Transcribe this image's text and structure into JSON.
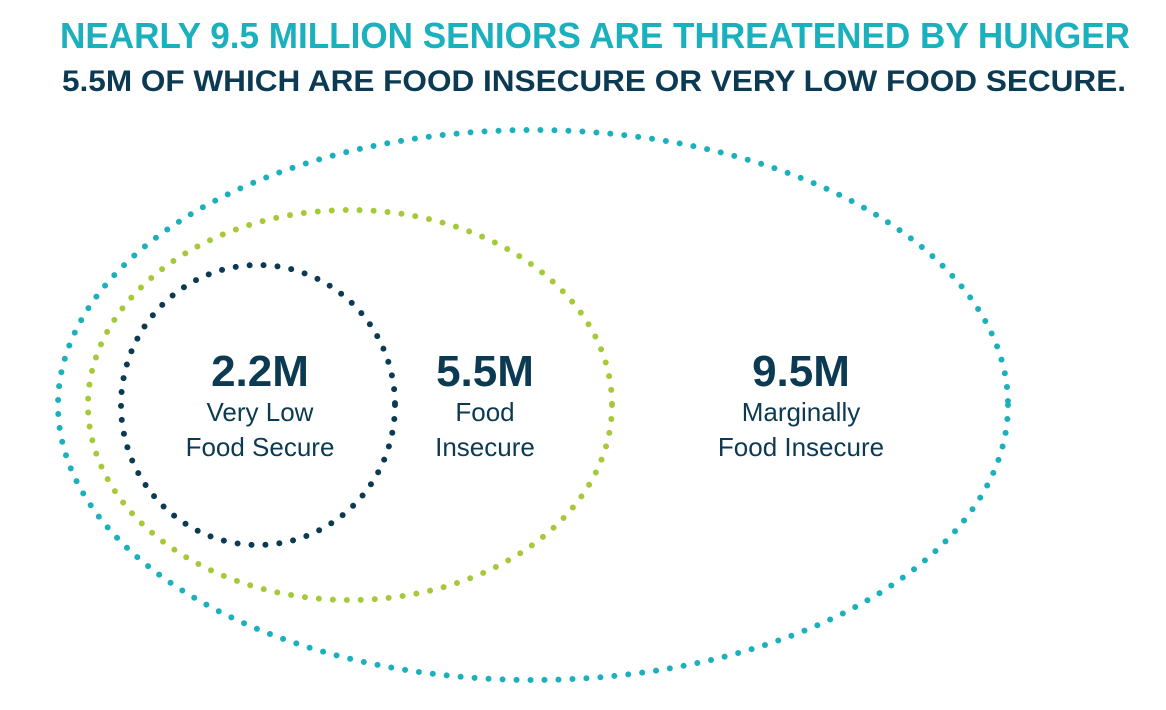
{
  "header": {
    "title": "NEARLY 9.5 MILLION SENIORS ARE THREATENED BY HUNGER",
    "subtitle": "5.5M OF WHICH ARE FOOD INSECURE OR VERY LOW FOOD SECURE."
  },
  "nodes": [
    {
      "value": "2.2M",
      "label_lines": [
        "Very Low",
        "Food Secure"
      ]
    },
    {
      "value": "5.5M",
      "label_lines": [
        "Food",
        "Insecure"
      ]
    },
    {
      "value": "9.5M",
      "label_lines": [
        "Marginally",
        "Food Insecure"
      ]
    }
  ]
}
